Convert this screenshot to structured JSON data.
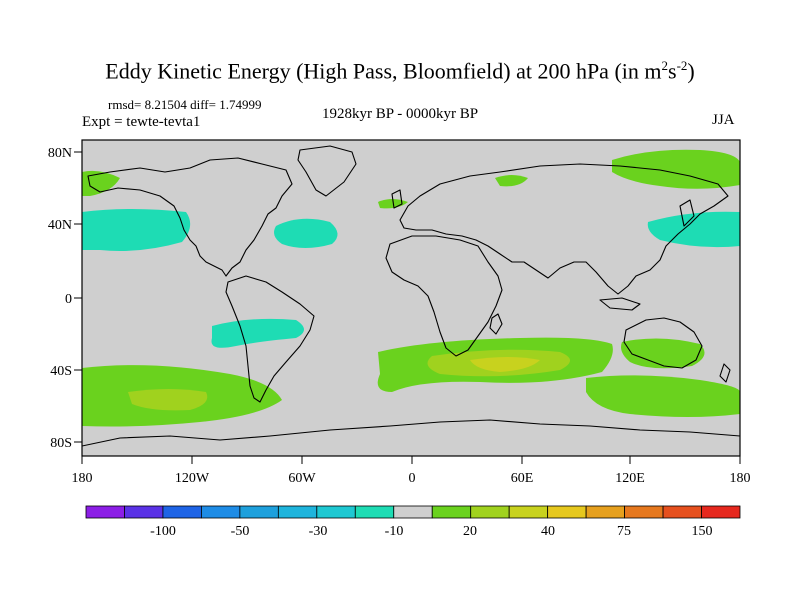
{
  "title": {
    "text": "Eddy Kinetic Energy (High Pass, Bloomfield) at 200 hPa (in m",
    "sup1": "2",
    "mid": "s",
    "sup2": "-2",
    "end": ")"
  },
  "stats": "rmsd= 8.21504 diff= 1.74999",
  "experiment": "Expt = tewte-tevta1",
  "period": "1928kyr BP - 0000kyr BP",
  "season": "JJA",
  "y_ticks": [
    "80N",
    "40N",
    "0",
    "40S",
    "80S"
  ],
  "x_ticks": [
    "180",
    "120W",
    "60W",
    "0",
    "60E",
    "120E",
    "180"
  ],
  "colorbar": {
    "colors": [
      "#8c1ee6",
      "#5a32e6",
      "#1e64e6",
      "#1e8ce6",
      "#1ea0dc",
      "#1eb4dc",
      "#1ec8d2",
      "#1edcb4",
      "#cfcfcf",
      "#6ad21e",
      "#a0d21e",
      "#c8d21e",
      "#e6c81e",
      "#e6a01e",
      "#e6781e",
      "#e6501e",
      "#e6281e"
    ],
    "labels": [
      "-100",
      "-50",
      "-30",
      "-10",
      "20",
      "40",
      "75",
      "150"
    ]
  },
  "map": {
    "background_color": "#cfcfcf",
    "anomaly_colors": {
      "green": "#6ad21e",
      "lightgreen": "#a0d21e",
      "yellow": "#c8d21e",
      "cyan": "#1edcb4"
    }
  }
}
